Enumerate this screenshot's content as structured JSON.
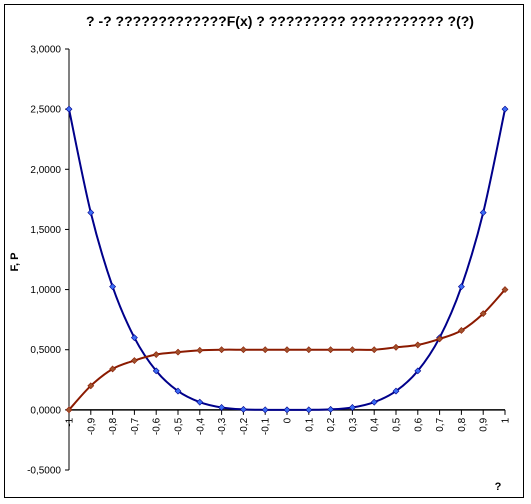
{
  "chart_data": {
    "type": "line",
    "title": "? -? ?????????????F(x) ? ????????? ??????????? ?(?)",
    "ylabel": "F, P",
    "xlabel": "?",
    "ylim": [
      -0.5,
      3.0
    ],
    "xlim": [
      -1,
      1
    ],
    "grid": false,
    "legend": "none",
    "y_ticks": [
      "-0,5000",
      "0,0000",
      "0,5000",
      "1,0000",
      "1,5000",
      "2,0000",
      "2,5000",
      "3,0000"
    ],
    "y_tick_values": [
      -0.5,
      0,
      0.5,
      1.0,
      1.5,
      2.0,
      2.5,
      3.0
    ],
    "x_tick_labels": [
      "-1",
      "-0,9",
      "-0,8",
      "-0,7",
      "-0,6",
      "-0,5",
      "-0,4",
      "-0,3",
      "-0,2",
      "-0,1",
      "0",
      "0,1",
      "0,2",
      "0,3",
      "0,4",
      "0,5",
      "0,6",
      "0,7",
      "0,8",
      "0,9",
      "1"
    ],
    "x": [
      -1,
      -0.9,
      -0.8,
      -0.7,
      -0.6,
      -0.5,
      -0.4,
      -0.3,
      -0.2,
      -0.1,
      0,
      0.1,
      0.2,
      0.3,
      0.4,
      0.5,
      0.6,
      0.7,
      0.8,
      0.9,
      1
    ],
    "series": [
      {
        "color": "#00008b",
        "marker_color": "#3b6cf5",
        "marker": "diamond",
        "values": [
          2.5,
          1.64,
          1.024,
          0.6,
          0.324,
          0.156,
          0.064,
          0.02,
          0.004,
          0.0003,
          0,
          0.0003,
          0.004,
          0.02,
          0.064,
          0.156,
          0.324,
          0.6,
          1.024,
          1.64,
          2.5
        ]
      },
      {
        "color": "#8b1a00",
        "marker_color": "#a0522d",
        "marker": "diamond",
        "values": [
          0,
          0.2,
          0.34,
          0.41,
          0.46,
          0.48,
          0.495,
          0.5,
          0.5,
          0.5,
          0.5,
          0.5,
          0.5,
          0.5,
          0.5,
          0.52,
          0.54,
          0.59,
          0.66,
          0.8,
          1.0
        ]
      }
    ]
  }
}
